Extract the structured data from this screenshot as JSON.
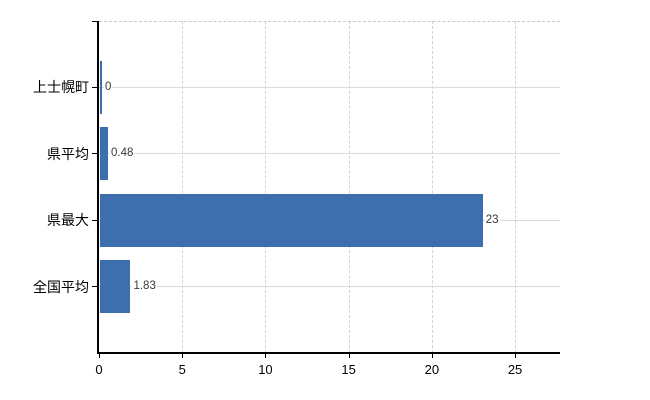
{
  "chart_data": {
    "type": "bar",
    "orientation": "horizontal",
    "title": "",
    "xlabel": "",
    "ylabel": "",
    "categories": [
      "上士幌町",
      "県平均",
      "県最大",
      "全国平均"
    ],
    "values": [
      0,
      0.48,
      23,
      1.83
    ],
    "value_labels": [
      "0",
      "0.48",
      "23",
      "1.83"
    ],
    "x_ticks": [
      0,
      5,
      10,
      15,
      20,
      25
    ],
    "x_tick_labels": [
      "0",
      "5",
      "10",
      "15",
      "20",
      "25"
    ],
    "xlim": [
      0,
      27.7
    ],
    "grid": true,
    "legend": false,
    "bar_color": "#3d6eae",
    "axis_color": "#000000",
    "gridline_color": "#d6dcd6",
    "value_label_color": "#3a3a3a",
    "background_color": "#ffffff"
  }
}
